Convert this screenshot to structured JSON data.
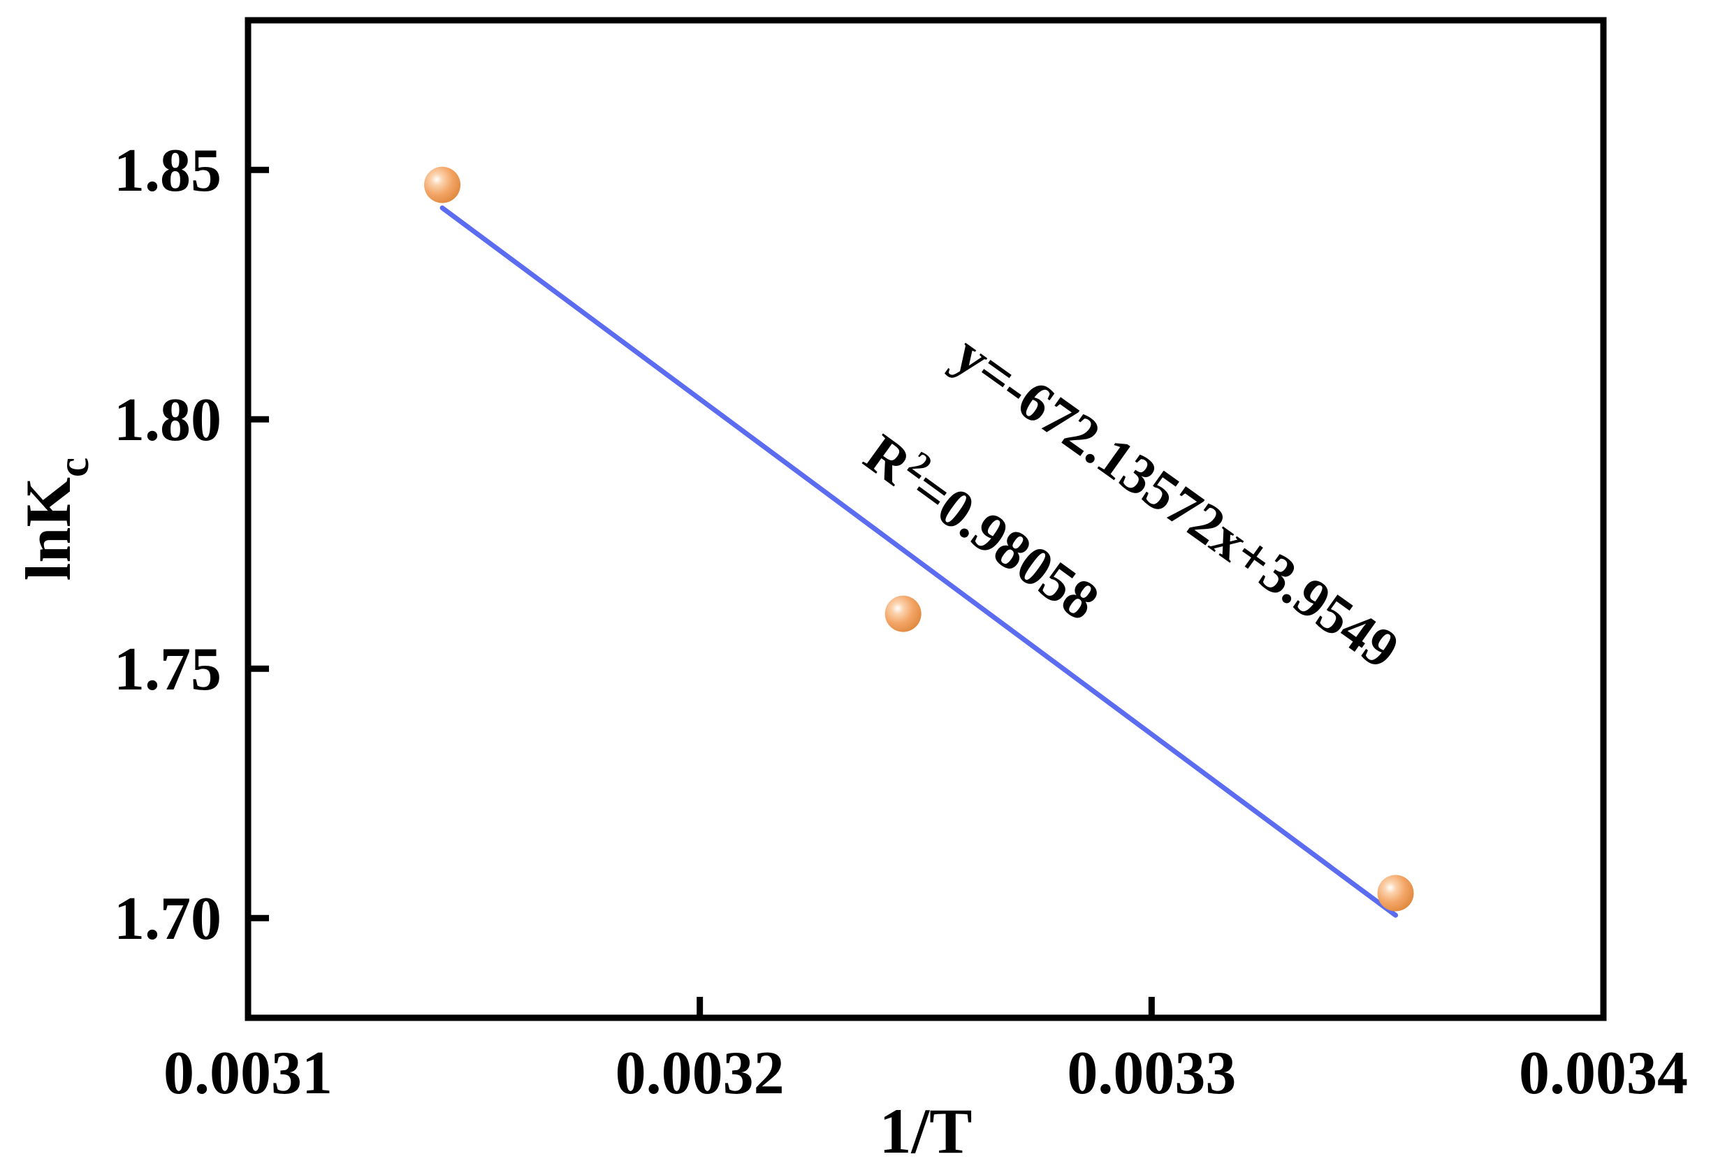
{
  "chart_data": {
    "type": "scatter",
    "xlabel": "1/T",
    "ylabel": {
      "main": "lnK",
      "sub": "c"
    },
    "xlim": [
      0.0031,
      0.0034
    ],
    "ylim": [
      1.68,
      1.88
    ],
    "xticks": [
      {
        "value": 0.0031,
        "label": "0.0031"
      },
      {
        "value": 0.0032,
        "label": "0.0032"
      },
      {
        "value": 0.0033,
        "label": "0.0033"
      },
      {
        "value": 0.0034,
        "label": "0.0034"
      }
    ],
    "yticks": [
      {
        "value": 1.7,
        "label": "1.70"
      },
      {
        "value": 1.75,
        "label": "1.75"
      },
      {
        "value": 1.8,
        "label": "1.80"
      },
      {
        "value": 1.85,
        "label": "1.85"
      }
    ],
    "grid": false,
    "series": [
      {
        "points": [
          {
            "x": 0.003143,
            "y": 1.847
          },
          {
            "x": 0.003245,
            "y": 1.761
          },
          {
            "x": 0.003354,
            "y": 1.705
          }
        ],
        "color": "#F0A060",
        "marker": "sphere"
      }
    ],
    "fit_line": {
      "slope": -672.13572,
      "intercept": 3.9549,
      "x_range": [
        0.003143,
        0.003354
      ],
      "color": "#5B6CF0"
    },
    "annotations": {
      "equation": {
        "main": "y=-672.13572x+3.9549"
      },
      "r_squared": {
        "prefix": "R",
        "sup": "2",
        "rest": "=0.98058"
      }
    }
  }
}
